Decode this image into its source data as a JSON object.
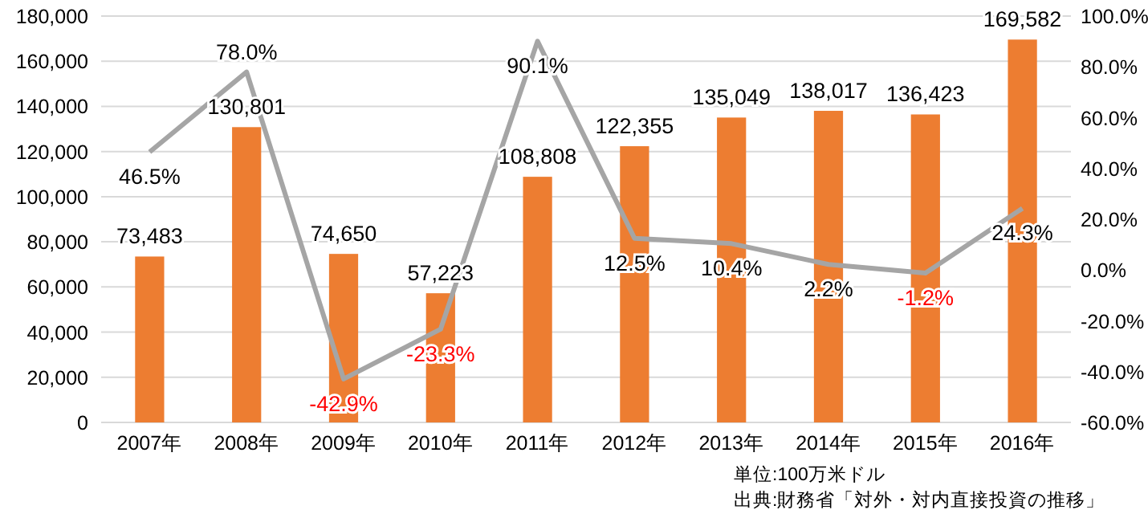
{
  "chart_data": {
    "type": "bar",
    "categories": [
      "2007年",
      "2008年",
      "2009年",
      "2010年",
      "2011年",
      "2012年",
      "2013年",
      "2014年",
      "2015年",
      "2016年"
    ],
    "series": [
      {
        "color": "#ed7d31",
        "values": [
          73483,
          130801,
          74650,
          57223,
          108808,
          122355,
          135049,
          138017,
          136423,
          169582
        ],
        "value_labels": [
          "73,483",
          "130,801",
          "74,650",
          "57,223",
          "108,808",
          "122,355",
          "135,049",
          "138,017",
          "136,423",
          "169,582"
        ]
      },
      {
        "type": "line",
        "axis": "y2",
        "color": "#a5a5a5",
        "values": [
          46.5,
          78.0,
          -42.9,
          -23.3,
          90.1,
          12.5,
          10.4,
          2.2,
          -1.2,
          24.3
        ],
        "value_labels": [
          "46.5%",
          "78.0%",
          "-42.9%",
          "-23.3%",
          "90.1%",
          "12.5%",
          "10.4%",
          "2.2%",
          "-1.2%",
          "24.3%"
        ]
      }
    ],
    "ylim": [
      0,
      180000
    ],
    "yticks": [
      0,
      {
        "value": 20000,
        "label": "20,000"
      },
      {
        "value": 40000,
        "label": "40,000"
      },
      {
        "value": 60000,
        "label": "60,000"
      },
      {
        "value": 80000,
        "label": "80,000"
      },
      {
        "value": 100000,
        "label": "100,000"
      },
      {
        "value": 120000,
        "label": "120,000"
      },
      {
        "value": 140000,
        "label": "140,000"
      },
      {
        "value": 160000,
        "label": "160,000"
      },
      {
        "value": 180000,
        "label": "180,000"
      }
    ],
    "y2lim": [
      -60,
      100
    ],
    "y2ticks": [
      {
        "value": -60,
        "label": "-60.0%"
      },
      {
        "value": -40,
        "label": "-40.0%"
      },
      {
        "value": -20,
        "label": "-20.0%"
      },
      {
        "value": 0,
        "label": "0.0%"
      },
      {
        "value": 20,
        "label": "20.0%"
      },
      {
        "value": 40,
        "label": "40.0%"
      },
      {
        "value": 60,
        "label": "60.0%"
      },
      {
        "value": 80,
        "label": "80.0%"
      },
      {
        "value": 100,
        "label": "100.0%"
      }
    ],
    "grid": "y",
    "marker": "none",
    "annotations": [
      "単位:100万米ドル",
      "出典:財務省「対外・対内直接投資の推移」"
    ]
  }
}
